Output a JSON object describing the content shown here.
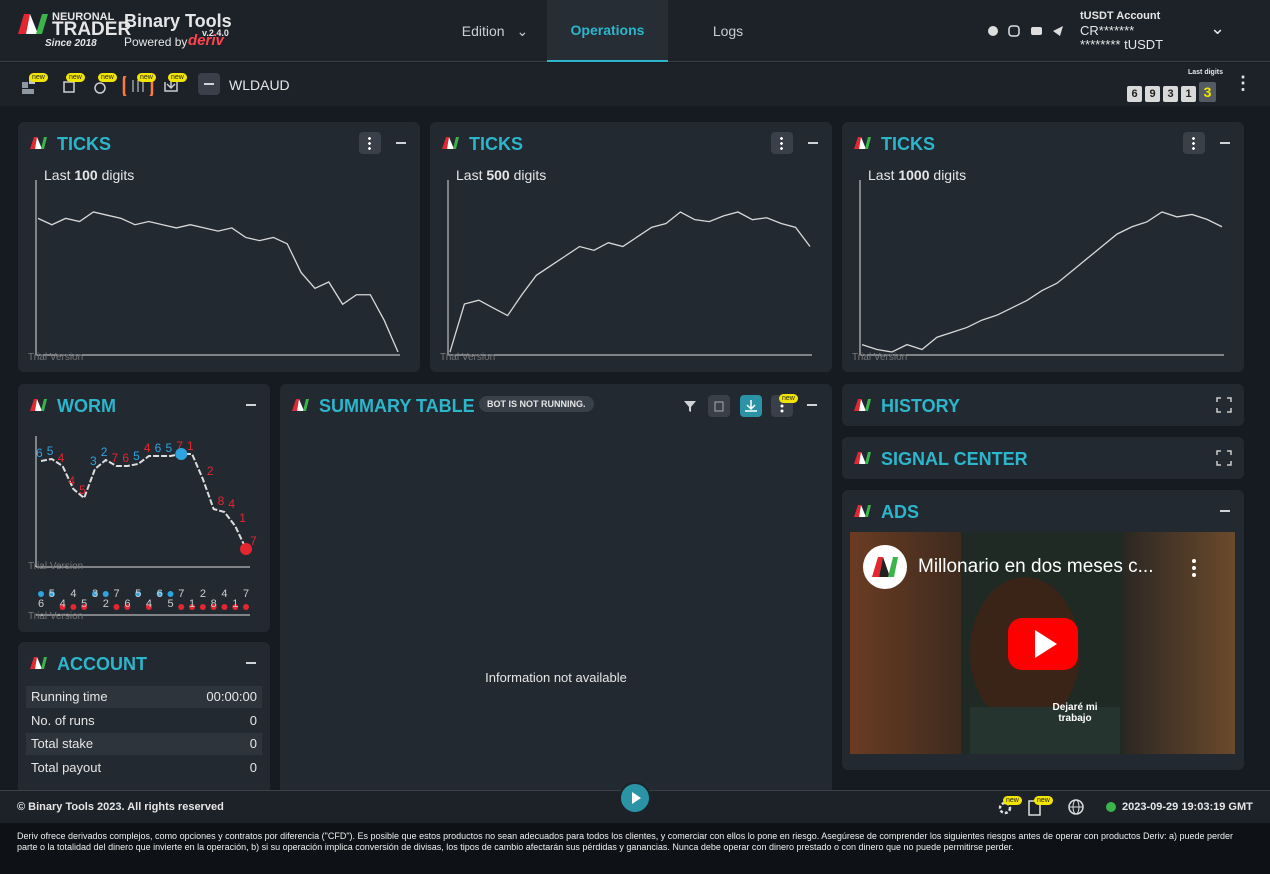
{
  "header": {
    "brand_top": "NEURONAL",
    "brand": "TRADER",
    "since": "Since 2018",
    "app": "Binary Tools",
    "version": "v.2.4.0",
    "powered": "Powered by",
    "powered_brand": "deriv",
    "nav": [
      "Edition",
      "Operations",
      "Logs"
    ],
    "account": {
      "title": "tUSDT Account",
      "id": "CR*******",
      "balance": "******** tUSDT"
    }
  },
  "toolbar": {
    "badges": [
      "new",
      "new",
      "new",
      "new",
      "new"
    ],
    "symbol": "WLDAUD",
    "last_digits_label": "Last digits",
    "last_digits": [
      6,
      9,
      3,
      1,
      3
    ]
  },
  "ticks": [
    {
      "title": "TICKS",
      "caption_pre": "Last",
      "count": 100,
      "caption_post": "digits",
      "watermark": "Trial Version",
      "values": [
        72,
        70,
        72,
        71,
        74,
        73,
        72,
        70,
        71,
        70,
        69,
        70,
        69,
        68,
        69,
        66,
        65,
        66,
        64,
        55,
        50,
        52,
        45,
        48,
        48,
        40,
        30
      ]
    },
    {
      "title": "TICKS",
      "caption_pre": "Last",
      "count": 500,
      "caption_post": "digits",
      "watermark": "Trial Version",
      "values": [
        5,
        30,
        32,
        28,
        24,
        35,
        45,
        50,
        55,
        60,
        58,
        62,
        60,
        65,
        70,
        72,
        78,
        74,
        73,
        76,
        78,
        74,
        75,
        72,
        70,
        60
      ]
    },
    {
      "title": "TICKS",
      "caption_pre": "Last",
      "count": 1000,
      "caption_post": "digits",
      "watermark": "Trial Version",
      "values": [
        30,
        28,
        27,
        30,
        28,
        33,
        35,
        37,
        40,
        42,
        45,
        48,
        52,
        55,
        60,
        65,
        70,
        75,
        78,
        80,
        84,
        82,
        83,
        81,
        78
      ]
    }
  ],
  "worm": {
    "title": "WORM",
    "watermark": "Trial Version",
    "digits": [
      6,
      5,
      4,
      4,
      5,
      3,
      2,
      7,
      6,
      5,
      4,
      6,
      5,
      7,
      1,
      2,
      8,
      4,
      1,
      7
    ],
    "colors": [
      "#2fa3df",
      "#2fa3df",
      "#e3262f",
      "#e3262f",
      "#e3262f",
      "#2fa3df",
      "#2fa3df",
      "#e3262f",
      "#e3262f",
      "#2fa3df",
      "#e3262f",
      "#2fa3df",
      "#2fa3df",
      "#e3262f",
      "#e3262f",
      "#e3262f",
      "#e3262f",
      "#e3262f",
      "#e3262f",
      "#e3262f"
    ],
    "levels": [
      100,
      102,
      95,
      72,
      63,
      92,
      101,
      95,
      95,
      97,
      105,
      105,
      105,
      107,
      107,
      82,
      52,
      49,
      35,
      12
    ]
  },
  "summary": {
    "title": "SUMMARY TABLE",
    "status": "BOT IS NOT RUNNING.",
    "empty": "Information not available",
    "badge": "new"
  },
  "history": {
    "title": "HISTORY"
  },
  "signal_center": {
    "title": "SIGNAL CENTER"
  },
  "ads": {
    "title": "ADS",
    "video_title": "Millonario en dos meses c...",
    "caption": "Dejaré mi trabajo"
  },
  "account": {
    "title": "ACCOUNT",
    "rows": [
      [
        "Running time",
        "00:00:00"
      ],
      [
        "No. of runs",
        0
      ],
      [
        "Total stake",
        0
      ],
      [
        "Total payout",
        0
      ]
    ]
  },
  "footer": {
    "copyright": "© Binary Tools 2023. All rights reserved",
    "badges": [
      "new",
      "new"
    ],
    "datetime": "2023-09-29 19:03:19 GMT"
  },
  "disclaimer": "Deriv ofrece derivados complejos, como opciones y contratos por diferencia (\"CFD\"). Es posible que estos productos no sean adecuados para todos los clientes, y comerciar con ellos lo pone en riesgo. Asegúrese de comprender los siguientes riesgos antes de operar con productos Deriv: a) puede perder parte o la totalidad del dinero que invierte en la operación, b) si su operación implica conversión de divisas, los tipos de cambio afectarán sus pérdidas y ganancias. Nunca debe operar con dinero prestado o con dinero que no puede permitirse perder."
}
